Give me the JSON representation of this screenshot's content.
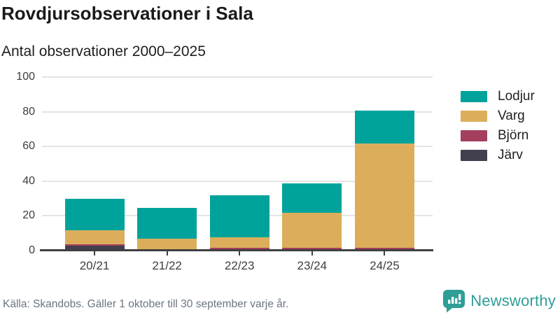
{
  "title": "Rovdjursobservationer i Sala",
  "subtitle": "Antal observationer 2000–2025",
  "caption": "Källa: Skandobs. Gäller 1 oktober till 30 september varje år.",
  "branding": {
    "name": "Newsworthy",
    "color": "#2e9e96"
  },
  "colors": {
    "lodjur": "#00a39b",
    "varg": "#dcae5b",
    "bjorn": "#a43f5e",
    "jarv": "#423f4e",
    "axis": "#3f3f3f",
    "grid": "#e3e3e3"
  },
  "chart_data": {
    "type": "bar",
    "stacked": true,
    "title": "Rovdjursobservationer i Sala",
    "subtitle": "Antal observationer 2000–2025",
    "categories": [
      "20/21",
      "21/22",
      "22/23",
      "23/24",
      "24/25"
    ],
    "series": [
      {
        "name": "Lodjur",
        "color": "#00a39b",
        "values": [
          18,
          18,
          24,
          17,
          19
        ]
      },
      {
        "name": "Varg",
        "color": "#dcae5b",
        "values": [
          8,
          6,
          6,
          20,
          60
        ]
      },
      {
        "name": "Björn",
        "color": "#a43f5e",
        "values": [
          1,
          0,
          1,
          1,
          1
        ]
      },
      {
        "name": "Järv",
        "color": "#423f4e",
        "values": [
          2,
          0,
          0,
          0,
          0
        ]
      }
    ],
    "stack_order_bottom_to_top": [
      "Järv",
      "Björn",
      "Varg",
      "Lodjur"
    ],
    "totals": [
      29,
      24,
      31,
      38,
      80
    ],
    "yticks": [
      0,
      20,
      40,
      60,
      80,
      100
    ],
    "ylim": [
      0,
      100
    ],
    "grid": true,
    "legend_position": "right"
  }
}
